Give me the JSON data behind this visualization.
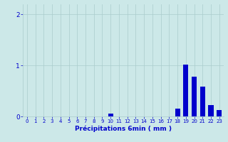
{
  "hours": [
    0,
    1,
    2,
    3,
    4,
    5,
    6,
    7,
    8,
    9,
    10,
    11,
    12,
    13,
    14,
    15,
    16,
    17,
    18,
    19,
    20,
    21,
    22,
    23
  ],
  "values": [
    0,
    0,
    0,
    0,
    0,
    0,
    0,
    0,
    0,
    0,
    0.06,
    0,
    0,
    0,
    0,
    0,
    0,
    0,
    0.15,
    1.02,
    0.78,
    0.58,
    0.22,
    0.12
  ],
  "bar_color": "#0000cc",
  "bg_color": "#cce8e8",
  "grid_color": "#aacccc",
  "xlabel": "Précipitations 6min ( mm )",
  "xlabel_color": "#0000cc",
  "ylabel_ticks": [
    0,
    1,
    2
  ],
  "xlim": [
    -0.5,
    23.5
  ],
  "ylim": [
    0,
    2.2
  ],
  "tick_color": "#0000cc"
}
